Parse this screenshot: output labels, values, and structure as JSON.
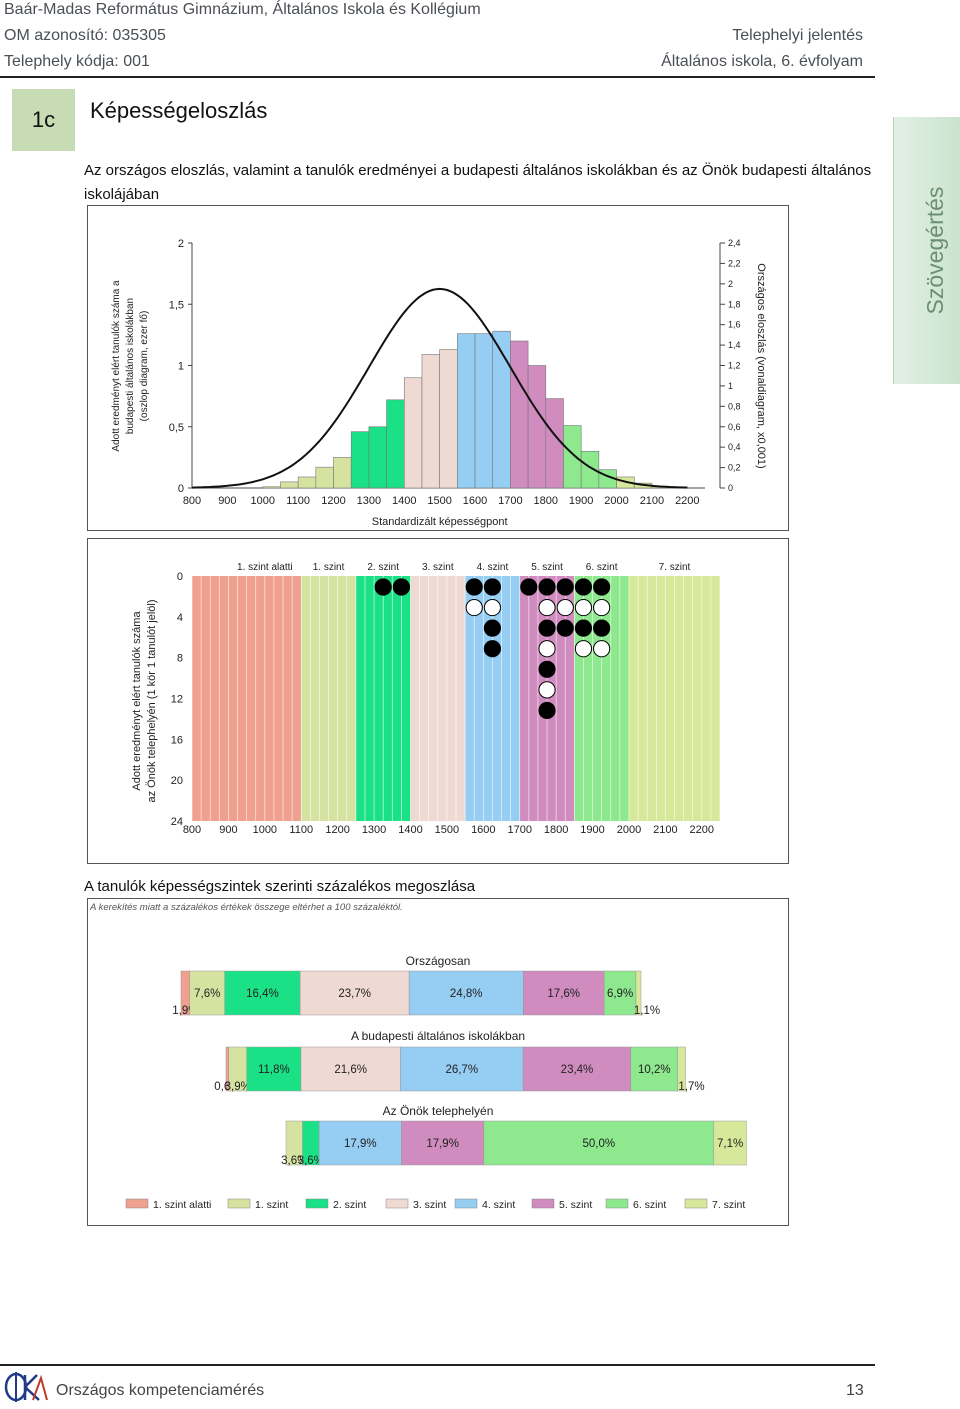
{
  "header": {
    "school": "Baár-Madas Református Gimnázium, Általános Iskola és Kollégium",
    "om": "OM azonosító: 035305",
    "site_code": "Telephely kódja: 001",
    "report": "Telephelyi jelentés",
    "grade": "Általános iskola, 6. évfolyam"
  },
  "section": {
    "tag": "1c",
    "title": "Képességeloszlás",
    "intro": "Az országos eloszlás, valamint a tanulók eredményei a budapesti általános iskolákban és az Önök budapesti általános iskolájában",
    "side_tab": "Szövegértés",
    "percent_title": "A tanulók képességszintek szerinti százalékos megoszlása",
    "rounding_note": "A kerekítés miatt a százalékos értékek összege eltérhet a 100 százaléktól."
  },
  "footer": {
    "text": "Országos kompetenciamérés",
    "page": "13"
  },
  "colors": {
    "below1": "#f0a08e",
    "l1": "#d6e3a0",
    "l2": "#1be186",
    "l3": "#efd9d3",
    "l4": "#95cdf3",
    "l5": "#d08bbf",
    "l6": "#8ee88e",
    "l7": "#d8e89a"
  },
  "chart_data": [
    {
      "type": "bar",
      "title": "",
      "xlabel": "Standardizált képességpont",
      "ylabel": "Adott eredményt elért tanulók száma a budapesti általános iskolákban (oszlop diagram, ezer fő)",
      "ylabel_right": "Országos eloszlás (vonaldiagram, x0,001)",
      "xlim": [
        800,
        2250
      ],
      "ylim": [
        0,
        2
      ],
      "ylim_right": [
        0,
        2.4
      ],
      "x_ticks": [
        "800",
        "900",
        "1000",
        "1100",
        "1200",
        "1300",
        "1400",
        "1500",
        "1600",
        "1700",
        "1800",
        "1900",
        "2000",
        "2100",
        "2200"
      ],
      "y_ticks": [
        "0",
        "0,5",
        "1",
        "1,5",
        "2"
      ],
      "y_ticks_right": [
        "0",
        "0,2",
        "0,4",
        "0,6",
        "0,8",
        "1",
        "1,2",
        "1,4",
        "1,6",
        "1,8",
        "2",
        "2,2",
        "2,4"
      ],
      "bins_start": [
        1000,
        1050,
        1100,
        1150,
        1200,
        1250,
        1300,
        1350,
        1400,
        1450,
        1500,
        1550,
        1600,
        1650,
        1700,
        1750,
        1800,
        1850,
        1900,
        1950,
        2000,
        2050,
        2100,
        2150
      ],
      "bin_width": 50,
      "values": [
        0.01,
        0.05,
        0.09,
        0.17,
        0.25,
        0.46,
        0.5,
        0.72,
        0.9,
        1.09,
        1.13,
        1.26,
        1.26,
        1.28,
        1.2,
        1.0,
        0.73,
        0.51,
        0.3,
        0.15,
        0.09,
        0.04,
        0.01,
        0.01
      ],
      "levels": [
        "l1",
        "l1",
        "l1",
        "l1",
        "l1",
        "l2",
        "l2",
        "l2",
        "l3",
        "l3",
        "l3",
        "l4",
        "l4",
        "l4",
        "l5",
        "l5",
        "l5",
        "l6",
        "l6",
        "l6",
        "l7",
        "l7",
        "l7",
        "l7"
      ],
      "curve": {
        "mean": 1500,
        "sd": 200,
        "peak": 1.95
      }
    },
    {
      "type": "scatter",
      "xlabel": "",
      "ylabel": "Adott eredményt elért tanulók száma az Önök telephelyén (1 kör 1 tanulót jelöl)",
      "ylim": [
        0,
        24
      ],
      "xlim": [
        800,
        2250
      ],
      "x_ticks": [
        "800",
        "900",
        "1000",
        "1100",
        "1200",
        "1300",
        "1400",
        "1500",
        "1600",
        "1700",
        "1800",
        "1900",
        "2000",
        "2100",
        "2200"
      ],
      "y_ticks": [
        "0",
        "4",
        "8",
        "12",
        "16",
        "20",
        "24"
      ],
      "level_labels": [
        "1. szint alatti",
        "1. szint",
        "2. szint",
        "3. szint",
        "4. szint",
        "5. szint",
        "6. szint",
        "7. szint"
      ],
      "columns": [
        {
          "x": 1325,
          "circles": [
            "black"
          ]
        },
        {
          "x": 1375,
          "circles": [
            "black"
          ]
        },
        {
          "x": 1575,
          "circles": [
            "black",
            "white"
          ]
        },
        {
          "x": 1625,
          "circles": [
            "black",
            "white",
            "black",
            "black"
          ]
        },
        {
          "x": 1725,
          "circles": [
            "black"
          ]
        },
        {
          "x": 1775,
          "circles": [
            "black",
            "white",
            "black",
            "white",
            "black",
            "white",
            "black"
          ]
        },
        {
          "x": 1825,
          "circles": [
            "black",
            "white",
            "black"
          ]
        },
        {
          "x": 1875,
          "circles": [
            "black",
            "white",
            "black",
            "white"
          ]
        },
        {
          "x": 1925,
          "circles": [
            "black",
            "white",
            "black",
            "white"
          ]
        }
      ]
    },
    {
      "type": "bar",
      "stacked": true,
      "orientation": "horizontal",
      "categories": [
        "Országosan",
        "A budapesti általános iskolákban",
        "Az Önök telephelyén"
      ],
      "series": [
        {
          "name": "1. szint alatti",
          "values": [
            1.9,
            0.6,
            0
          ]
        },
        {
          "name": "1. szint",
          "values": [
            7.6,
            3.9,
            3.6
          ]
        },
        {
          "name": "2. szint",
          "values": [
            16.4,
            11.8,
            3.6
          ]
        },
        {
          "name": "3. szint",
          "values": [
            23.7,
            21.6,
            0
          ]
        },
        {
          "name": "4. szint",
          "values": [
            24.8,
            26.7,
            17.9
          ]
        },
        {
          "name": "5. szint",
          "values": [
            17.6,
            23.4,
            17.9
          ]
        },
        {
          "name": "6. szint",
          "values": [
            6.9,
            10.2,
            50.0
          ]
        },
        {
          "name": "7. szint",
          "values": [
            1.1,
            1.7,
            7.1
          ]
        }
      ],
      "labels": [
        [
          "1,9%",
          "7,6%",
          "16,4%",
          "23,7%",
          "24,8%",
          "17,6%",
          "6,9%",
          "1,1%"
        ],
        [
          "0,6%",
          "3,9%",
          "11,8%",
          "21,6%",
          "26,7%",
          "23,4%",
          "10,2%",
          "1,7%"
        ],
        [
          "",
          "3,6%",
          "3,6%",
          "",
          "17,9%",
          "17,9%",
          "50,0%",
          "7,1%"
        ]
      ],
      "legend_position": "bottom"
    }
  ]
}
